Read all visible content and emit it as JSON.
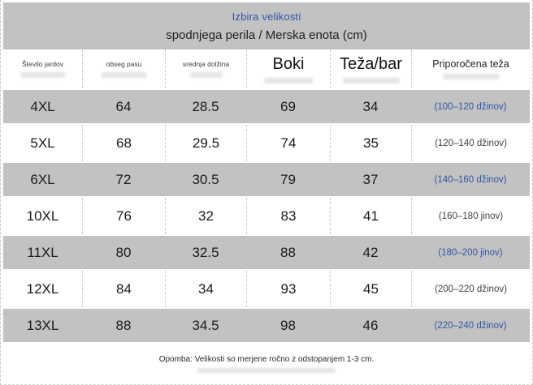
{
  "colors": {
    "accent_blue": "#2f55a5",
    "shaded_row_bg": "#c2c2c2"
  },
  "chart_data": {
    "type": "table",
    "title": "Izbira velikosti",
    "subtitle": "spodnjega perila / Merska enota (cm)",
    "columns": [
      "Število jardov",
      "obseg pasu",
      "srednja dolžina",
      "Boki",
      "Teža/bar",
      "Priporočena teža"
    ],
    "rows": [
      [
        "4XL",
        "64",
        "28.5",
        "69",
        "34",
        "(100–120 džinov)"
      ],
      [
        "5XL",
        "68",
        "29.5",
        "74",
        "35",
        "(120–140 džinov)"
      ],
      [
        "6XL",
        "72",
        "30.5",
        "79",
        "37",
        "(140–160 džinov)"
      ],
      [
        "10XL",
        "76",
        "32",
        "83",
        "41",
        "(160–180 jinov)"
      ],
      [
        "11XL",
        "80",
        "32.5",
        "88",
        "42",
        "(180–200 jinov)"
      ],
      [
        "12XL",
        "84",
        "34",
        "93",
        "45",
        "(200–220 džinov)"
      ],
      [
        "13XL",
        "88",
        "34.5",
        "98",
        "46",
        "(220–240 džinov)"
      ]
    ],
    "note": "Opomba: Velikosti so merjene ročno z odstopanjem 1-3 cm."
  }
}
